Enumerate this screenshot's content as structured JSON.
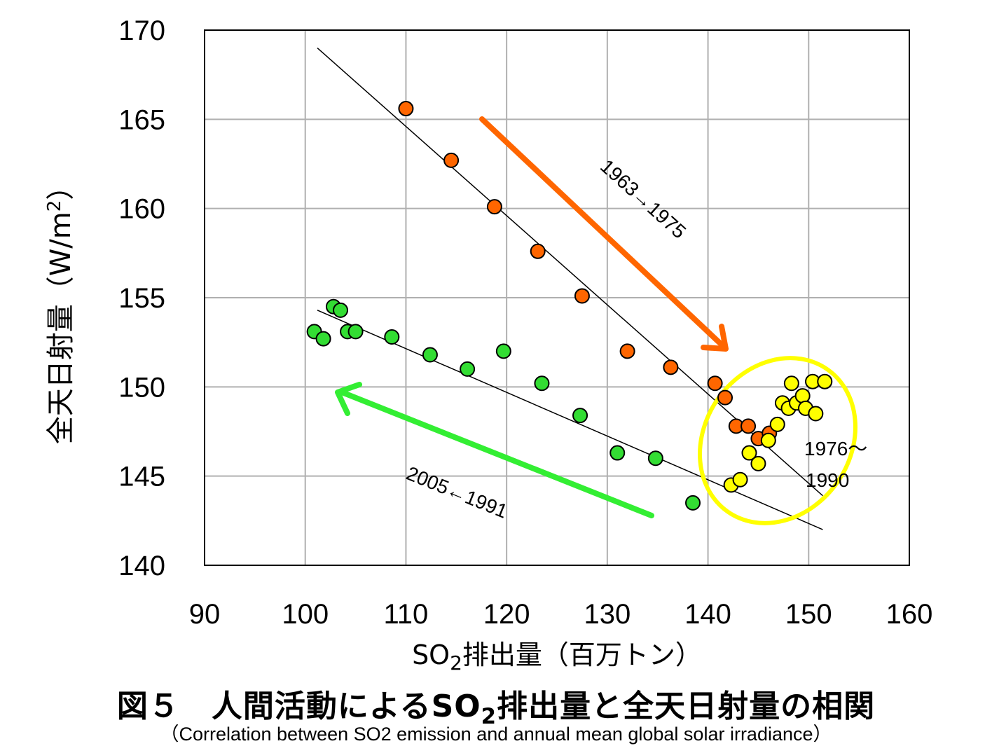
{
  "chart_data": {
    "type": "scatter",
    "xlabel_pre": "SO",
    "xlabel_sub": "2",
    "xlabel_post": "排出量（百万トン）",
    "ylabel_pre": "全天日射量（W/m",
    "ylabel_sup": "2",
    "ylabel_post": "）",
    "xlim": [
      90,
      160
    ],
    "ylim": [
      140,
      170
    ],
    "xticks": [
      90,
      100,
      110,
      120,
      130,
      140,
      150,
      160
    ],
    "yticks": [
      140,
      145,
      150,
      155,
      160,
      165,
      170
    ],
    "grid": true,
    "series": [
      {
        "color": "#ff6600",
        "points": [
          [
            110,
            165.6
          ],
          [
            114.5,
            162.7
          ],
          [
            118.8,
            160.1
          ],
          [
            123.1,
            157.6
          ],
          [
            127.5,
            155.1
          ],
          [
            132,
            152
          ],
          [
            136.3,
            151.1
          ],
          [
            140.7,
            150.2
          ],
          [
            141.7,
            149.4
          ],
          [
            142.8,
            147.8
          ],
          [
            144,
            147.8
          ],
          [
            145,
            147.1
          ],
          [
            146.1,
            147.4
          ]
        ]
      },
      {
        "color": "#ffff00",
        "points": [
          [
            142.3,
            144.5
          ],
          [
            143.2,
            144.8
          ],
          [
            144.1,
            146.3
          ],
          [
            145,
            145.7
          ],
          [
            146,
            147
          ],
          [
            146.9,
            147.9
          ],
          [
            147.4,
            149.1
          ],
          [
            148,
            148.8
          ],
          [
            148.3,
            150.2
          ],
          [
            148.8,
            149.1
          ],
          [
            149.4,
            149.5
          ],
          [
            149.7,
            148.8
          ],
          [
            150.4,
            150.3
          ],
          [
            150.7,
            148.5
          ],
          [
            151.6,
            150.3
          ]
        ]
      },
      {
        "color": "#33dd33",
        "points": [
          [
            100.9,
            153.1
          ],
          [
            101.8,
            152.7
          ],
          [
            102.8,
            154.5
          ],
          [
            103.5,
            154.3
          ],
          [
            104.2,
            153.1
          ],
          [
            105,
            153.1
          ],
          [
            108.6,
            152.8
          ],
          [
            112.4,
            151.8
          ],
          [
            116.1,
            151
          ],
          [
            119.7,
            152
          ],
          [
            123.5,
            150.2
          ],
          [
            127.3,
            148.4
          ],
          [
            131,
            146.3
          ],
          [
            134.8,
            146
          ],
          [
            138.5,
            143.5
          ]
        ]
      }
    ],
    "trendlines": [
      {
        "from": [
          101.2,
          169
        ],
        "to": [
          151.4,
          143.9
        ]
      },
      {
        "from": [
          101.2,
          154.3
        ],
        "to": [
          151.4,
          142
        ]
      }
    ],
    "annotations": {
      "orange_period": "1963→1975",
      "green_period": "2005←1991",
      "yellow_period_line1": "1976〜",
      "yellow_period_line2": "1990"
    },
    "caption_title_pre": "図５　人間活動によるSO",
    "caption_title_sub": "2",
    "caption_title_post": "排出量と全天日射量の相関",
    "caption_subtitle": "（Correlation between SO2 emission and annual mean global solar irradiance）"
  }
}
